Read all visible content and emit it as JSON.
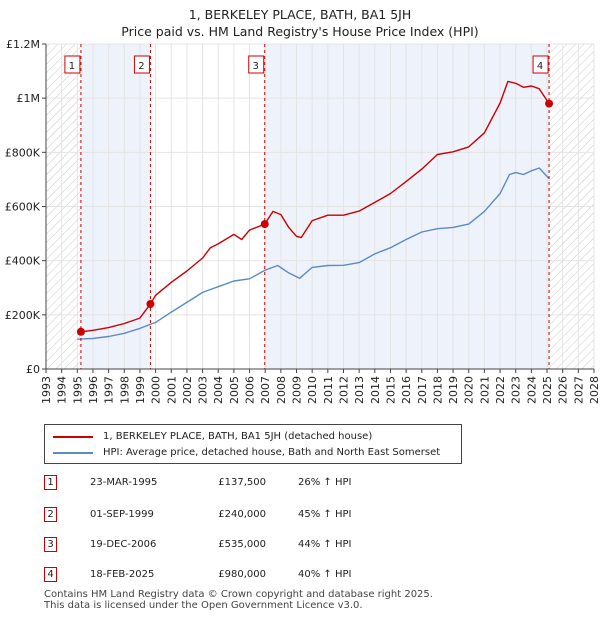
{
  "title_line1": "1, BERKELEY PLACE, BATH, BA1 5JH",
  "title_line2": "Price paid vs. HM Land Registry's House Price Index (HPI)",
  "chart_data": {
    "type": "line",
    "title": "1, BERKELEY PLACE, BATH, BA1 5JH — Price paid vs. HM Land Registry's House Price Index (HPI)",
    "xlabel": "",
    "ylabel": "",
    "xlim": [
      1993,
      2028
    ],
    "ylim": [
      0,
      1200000
    ],
    "x_ticks": [
      1993,
      1994,
      1995,
      1996,
      1997,
      1998,
      1999,
      2000,
      2001,
      2002,
      2003,
      2004,
      2005,
      2006,
      2007,
      2008,
      2009,
      2010,
      2011,
      2012,
      2013,
      2014,
      2015,
      2016,
      2017,
      2018,
      2019,
      2020,
      2021,
      2022,
      2023,
      2024,
      2025,
      2026,
      2027,
      2028
    ],
    "y_ticks": [
      0,
      200000,
      400000,
      600000,
      800000,
      1000000,
      1200000
    ],
    "y_tick_labels": [
      "£0",
      "£200K",
      "£400K",
      "£600K",
      "£800K",
      "£1M",
      "£1.2M"
    ],
    "hatched_regions": [
      [
        1993,
        1995.23
      ],
      [
        2025.13,
        2028
      ]
    ],
    "shaded_spans": [
      [
        1995.23,
        1999.67
      ],
      [
        2006.97,
        2025.13
      ]
    ],
    "series": [
      {
        "name": "1, BERKELEY PLACE, BATH, BA1 5JH (detached house)",
        "color": "#cc0000",
        "x": [
          1995.23,
          1996,
          1997,
          1998,
          1999,
          1999.67,
          2000,
          2001,
          2002,
          2003,
          2003.5,
          2004,
          2005,
          2005.5,
          2006,
          2006.97,
          2007.5,
          2008,
          2008.5,
          2009,
          2009.3,
          2010,
          2011,
          2012,
          2013,
          2014,
          2015,
          2016,
          2017,
          2018,
          2019,
          2020,
          2021,
          2022,
          2022.5,
          2023,
          2023.5,
          2024,
          2024.5,
          2025.13
        ],
        "values": [
          137500,
          143000,
          153000,
          168000,
          188000,
          240000,
          272000,
          320000,
          362000,
          410000,
          448000,
          462000,
          497000,
          478000,
          513000,
          535000,
          582000,
          570000,
          523000,
          490000,
          485000,
          548000,
          568000,
          568000,
          583000,
          615000,
          648000,
          692000,
          738000,
          792000,
          802000,
          820000,
          872000,
          982000,
          1062000,
          1055000,
          1040000,
          1045000,
          1035000,
          980000
        ]
      },
      {
        "name": "HPI: Average price, detached house, Bath and North East Somerset",
        "color": "#5b8ac6",
        "x": [
          1995,
          1996,
          1997,
          1998,
          1999,
          2000,
          2001,
          2002,
          2003,
          2004,
          2005,
          2006,
          2007,
          2007.8,
          2008.5,
          2009.2,
          2010,
          2011,
          2012,
          2013,
          2014,
          2015,
          2016,
          2017,
          2018,
          2019,
          2020,
          2021,
          2022,
          2022.6,
          2023,
          2023.5,
          2024,
          2024.5,
          2025.1
        ],
        "values": [
          110000,
          113000,
          120000,
          132000,
          150000,
          172000,
          210000,
          246000,
          283000,
          304000,
          325000,
          333000,
          365000,
          382000,
          355000,
          335000,
          375000,
          382000,
          383000,
          393000,
          425000,
          448000,
          478000,
          506000,
          518000,
          523000,
          535000,
          582000,
          648000,
          718000,
          725000,
          718000,
          732000,
          742000,
          705000
        ]
      }
    ],
    "transactions": [
      {
        "id": "1",
        "x": 1995.23,
        "value": 137500
      },
      {
        "id": "2",
        "x": 1999.67,
        "value": 240000
      },
      {
        "id": "3",
        "x": 2006.97,
        "value": 535000
      },
      {
        "id": "4",
        "x": 2025.13,
        "value": 980000
      }
    ]
  },
  "legend": {
    "property_label": "1, BERKELEY PLACE, BATH, BA1 5JH (detached house)",
    "hpi_label": "HPI: Average price, detached house, Bath and North East Somerset",
    "property_color": "#cc0000",
    "hpi_color": "#5b8ac6"
  },
  "transactions_table": [
    {
      "id": "1",
      "date": "23-MAR-1995",
      "price": "£137,500",
      "hpi": "26% ↑ HPI"
    },
    {
      "id": "2",
      "date": "01-SEP-1999",
      "price": "£240,000",
      "hpi": "45% ↑ HPI"
    },
    {
      "id": "3",
      "date": "19-DEC-2006",
      "price": "£535,000",
      "hpi": "44% ↑ HPI"
    },
    {
      "id": "4",
      "date": "18-FEB-2025",
      "price": "£980,000",
      "hpi": "40% ↑ HPI"
    }
  ],
  "footer": {
    "line1": "Contains HM Land Registry data © Crown copyright and database right 2025.",
    "line2": "This data is licensed under the Open Government Licence v3.0."
  }
}
